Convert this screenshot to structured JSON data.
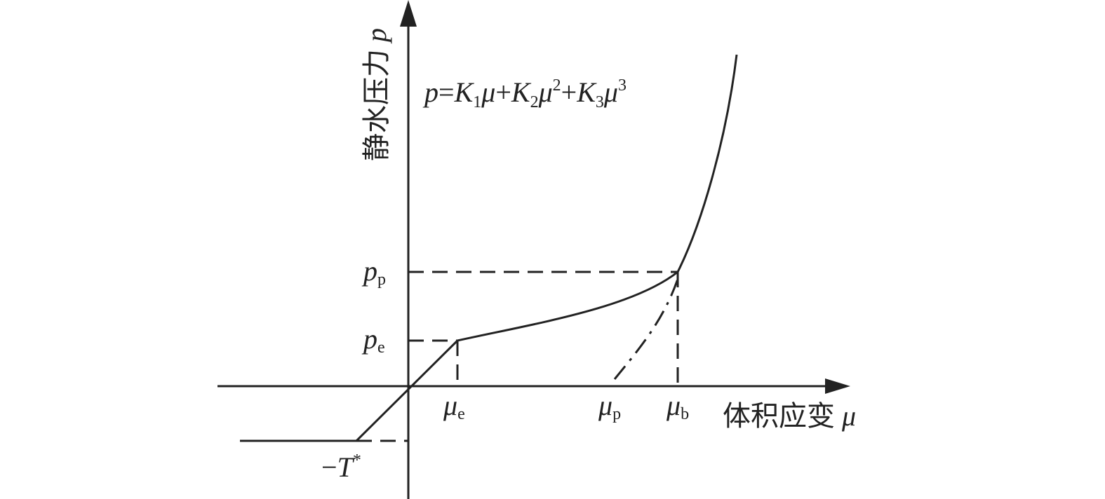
{
  "diagram": {
    "y_axis_label": {
      "text": "静水压力",
      "symbol": "p"
    },
    "x_axis_label": {
      "text": "体积应变",
      "symbol": "μ"
    },
    "equation": [
      "p",
      "=",
      "K",
      "1",
      "μ",
      "+",
      "K",
      "2",
      "μ",
      "2",
      "+",
      "K",
      "3",
      "μ",
      "3"
    ],
    "labels": {
      "p_p": {
        "main": "p",
        "sub": "p"
      },
      "p_e": {
        "main": "p",
        "sub": "e"
      },
      "mu_e": {
        "main": "μ",
        "sub": "e"
      },
      "mu_p": {
        "main": "μ",
        "sub": "p"
      },
      "mu_b": {
        "main": "μ",
        "sub": "b"
      },
      "tension": {
        "sign": "−",
        "main": "T",
        "sup": "*"
      }
    }
  }
}
